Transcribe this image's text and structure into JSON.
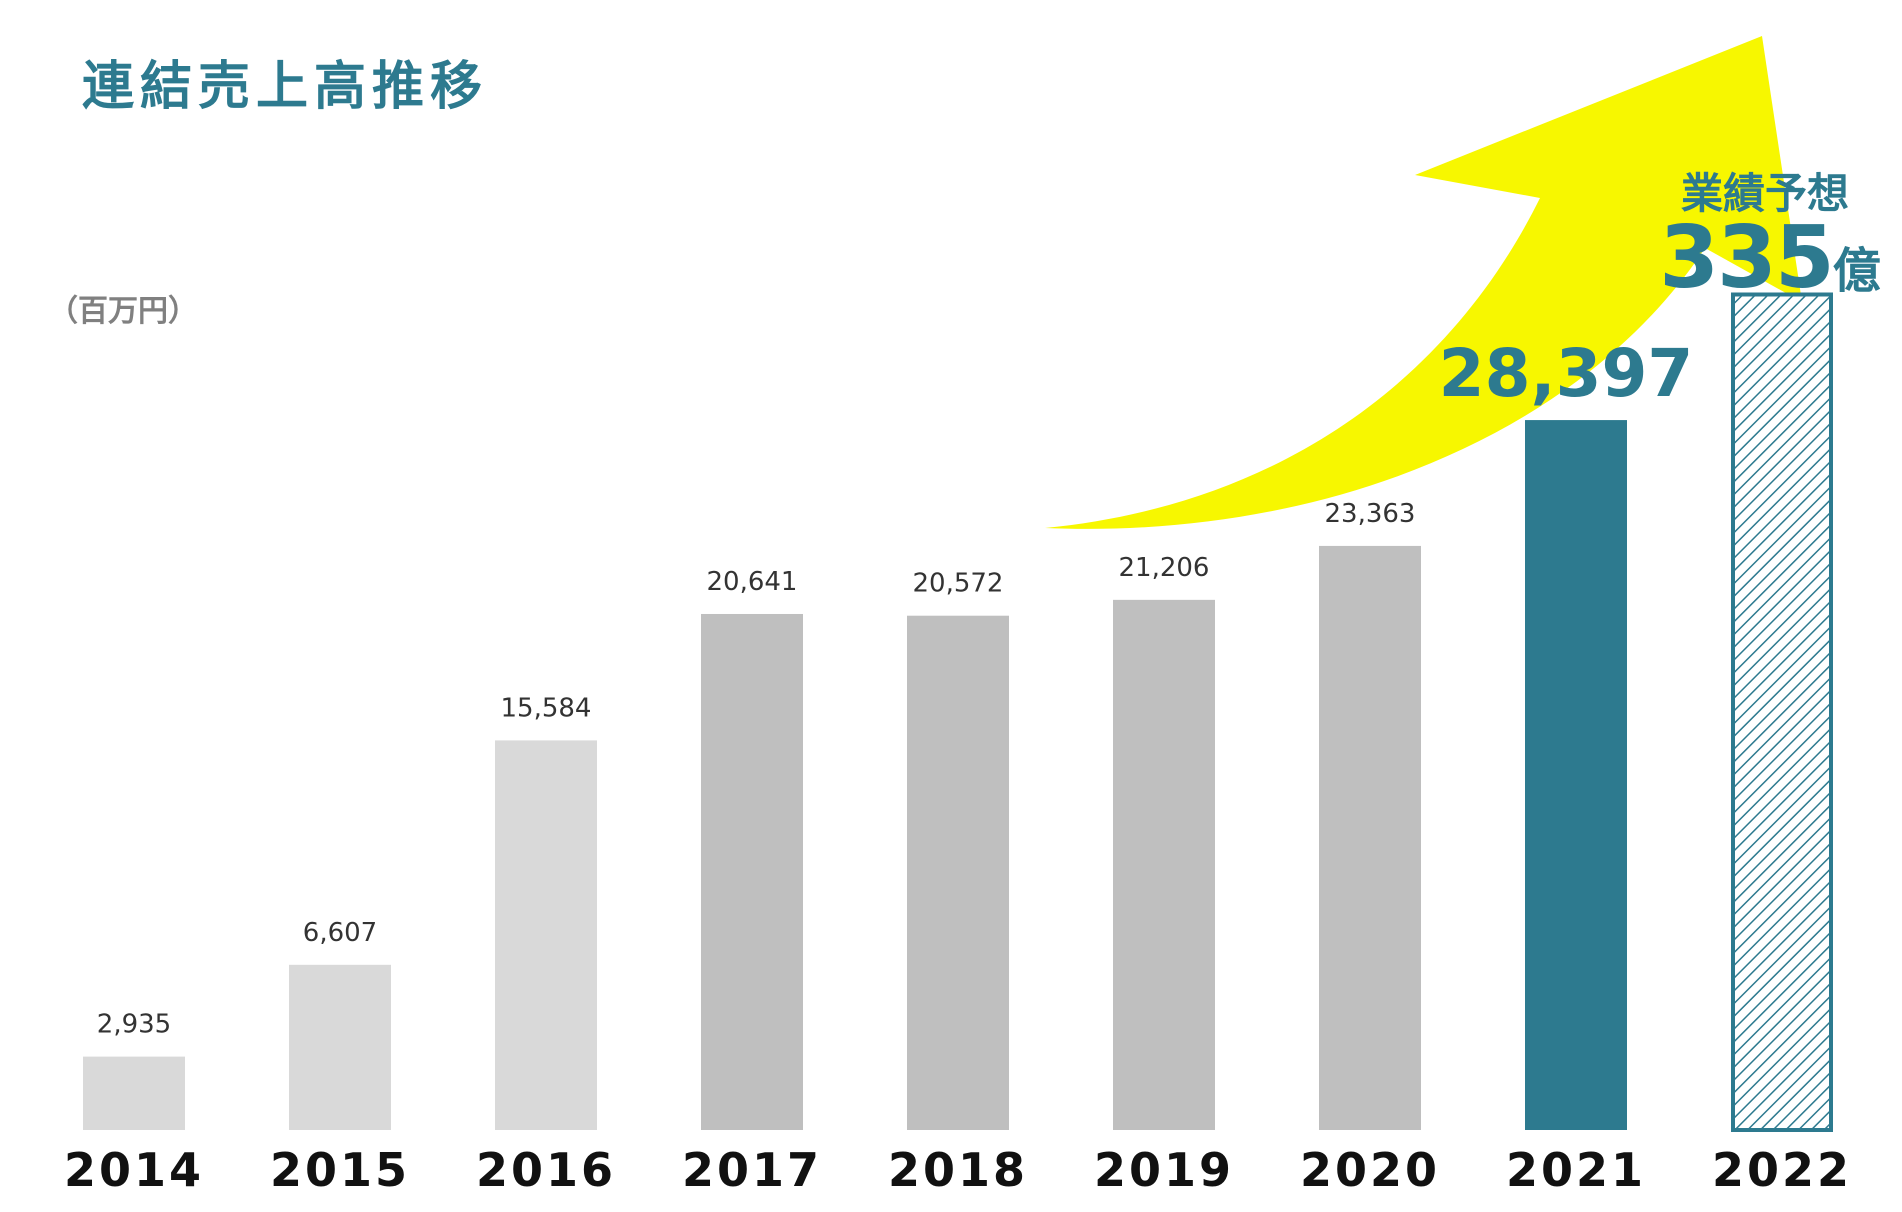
{
  "title": "連結売上高推移",
  "unit_label": "（百万円）",
  "forecast": {
    "label": "業績予想",
    "value": "335",
    "suffix": "億"
  },
  "colors": {
    "accent": "#2d7a8f",
    "arrow": "#f7f700",
    "bar_light": "#d9d9d9",
    "bar_mid": "#bfbfbf",
    "bar_highlight": "#2d7a8f"
  },
  "chart_data": {
    "type": "bar",
    "categories": [
      "2014",
      "2015",
      "2016",
      "2017",
      "2018",
      "2019",
      "2020",
      "2021",
      "2022"
    ],
    "values": [
      2935,
      6607,
      15584,
      20641,
      20572,
      21206,
      23363,
      28397,
      33500
    ],
    "value_labels": [
      "2,935",
      "6,607",
      "15,584",
      "20,641",
      "20,572",
      "21,206",
      "23,363",
      "28,397",
      ""
    ],
    "bar_styles": [
      "light",
      "light",
      "light",
      "mid",
      "mid",
      "mid",
      "mid",
      "highlight",
      "hatched"
    ],
    "ylim": [
      0,
      40000
    ],
    "grid": false,
    "xlabel": "",
    "ylabel": ""
  }
}
